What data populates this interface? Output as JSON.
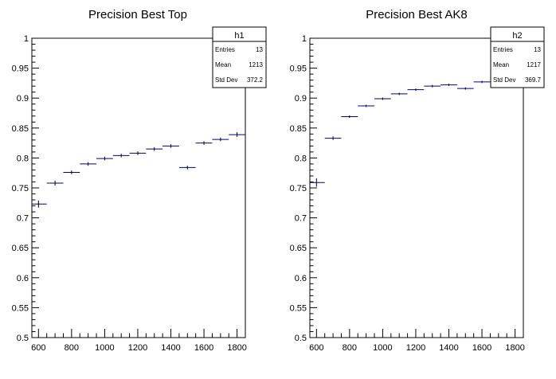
{
  "chart_data": [
    {
      "type": "scatter",
      "title": "Precision Best Top",
      "xlabel": "",
      "ylabel": "",
      "xlim": [
        560,
        1850
      ],
      "ylim": [
        0.5,
        1.0
      ],
      "x_ticks": [
        600,
        800,
        1000,
        1200,
        1400,
        1600,
        1800
      ],
      "y_ticks": [
        0.5,
        0.55,
        0.6,
        0.65,
        0.7,
        0.75,
        0.8,
        0.85,
        0.9,
        0.95,
        1
      ],
      "bin_width": 100,
      "x": [
        600,
        700,
        800,
        900,
        1000,
        1100,
        1200,
        1300,
        1400,
        1500,
        1600,
        1700,
        1800
      ],
      "y": [
        0.723,
        0.758,
        0.776,
        0.79,
        0.799,
        0.804,
        0.808,
        0.815,
        0.82,
        0.784,
        0.825,
        0.831,
        0.839
      ],
      "yerr": [
        0.006,
        0.004,
        0.003,
        0.003,
        0.003,
        0.003,
        0.003,
        0.003,
        0.003,
        0.003,
        0.003,
        0.003,
        0.004
      ],
      "grid": false,
      "stats": {
        "name": "h1",
        "rows": [
          {
            "label": "Entries",
            "value": "13"
          },
          {
            "label": "Mean",
            "value": "1213"
          },
          {
            "label": "Std Dev",
            "value": "372.2"
          }
        ]
      }
    },
    {
      "type": "scatter",
      "title": "Precision Best AK8",
      "xlabel": "",
      "ylabel": "",
      "xlim": [
        560,
        1850
      ],
      "ylim": [
        0.5,
        1.0
      ],
      "x_ticks": [
        600,
        800,
        1000,
        1200,
        1400,
        1600,
        1800
      ],
      "y_ticks": [
        0.5,
        0.55,
        0.6,
        0.65,
        0.7,
        0.75,
        0.8,
        0.85,
        0.9,
        0.95,
        1
      ],
      "bin_width": 100,
      "x": [
        600,
        700,
        800,
        900,
        1000,
        1100,
        1200,
        1300,
        1400,
        1500,
        1600,
        1700,
        1800
      ],
      "y": [
        0.759,
        0.833,
        0.869,
        0.887,
        0.899,
        0.907,
        0.914,
        0.92,
        0.922,
        0.916,
        0.927,
        0.93,
        0.935
      ],
      "yerr": [
        0.007,
        0.003,
        0.002,
        0.002,
        0.002,
        0.002,
        0.002,
        0.002,
        0.002,
        0.002,
        0.002,
        0.002,
        0.003
      ],
      "grid": false,
      "stats": {
        "name": "h2",
        "rows": [
          {
            "label": "Entries",
            "value": "13"
          },
          {
            "label": "Mean",
            "value": "1217"
          },
          {
            "label": "Std Dev",
            "value": "369.7"
          }
        ]
      }
    }
  ],
  "colors": {
    "marker": "#000080",
    "axis": "#000000",
    "background": "#ffffff"
  }
}
